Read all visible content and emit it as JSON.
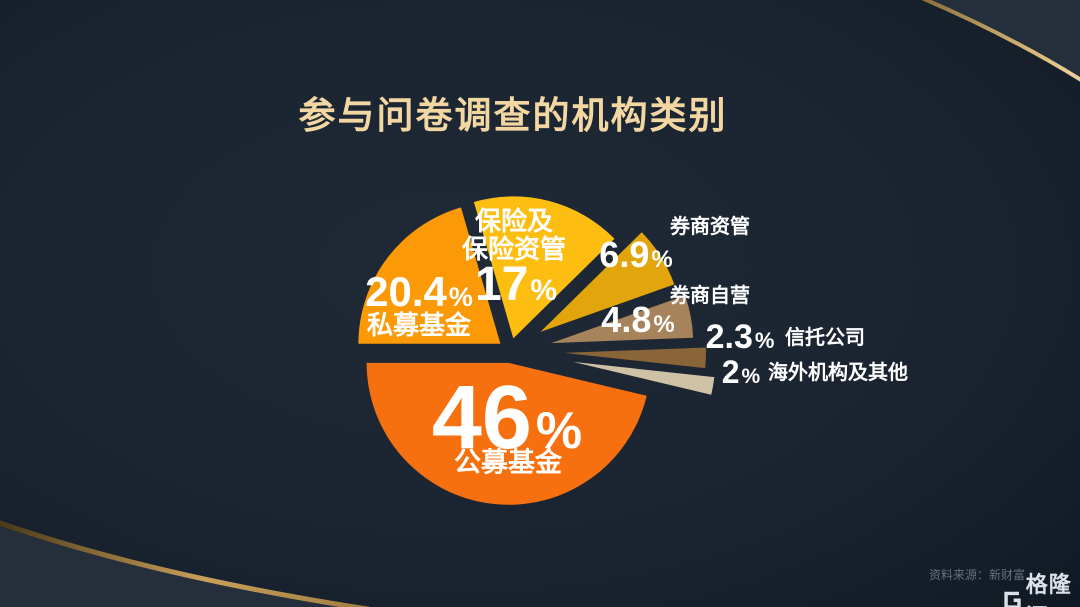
{
  "title": "参与问卷调查的机构类别",
  "chart_data": {
    "type": "pie",
    "title": "参与问卷调查的机构类别",
    "unit": "%",
    "total_percent": 99.4,
    "start_angle_deg": 180,
    "direction": "clockwise",
    "legend_position": "labels-on-and-beside-slices",
    "slices": [
      {
        "label": "私募基金",
        "value": 20.4,
        "color": "#FC9907"
      },
      {
        "label": "保险及保险资管",
        "value": 17,
        "color": "#FEBE11",
        "label_line1": "保险及",
        "label_line2": "保险资管"
      },
      {
        "label": "券商资管",
        "value": 6.9,
        "color": "#E2A60C"
      },
      {
        "label": "券商自营",
        "value": 4.8,
        "color": "#A7835B"
      },
      {
        "label": "信托公司",
        "value": 2.3,
        "color": "#8A6538"
      },
      {
        "label": "海外机构及其他",
        "value": 2,
        "color": "#CFC1A5"
      },
      {
        "label": "公募基金",
        "value": 46,
        "color": "#F7700F"
      }
    ]
  },
  "footer": {
    "source": "资料来源：新财富",
    "logo_icon": "gelonghui-g-icon",
    "logo_text": "格隆汇"
  },
  "theme": {
    "background_outer": "#242F3B",
    "background_dark": "#121A24",
    "gold_arc": "#D9B878",
    "title_color": "#F3D7A3",
    "label_color": "#FFFFFF",
    "source_color": "#66717E"
  }
}
